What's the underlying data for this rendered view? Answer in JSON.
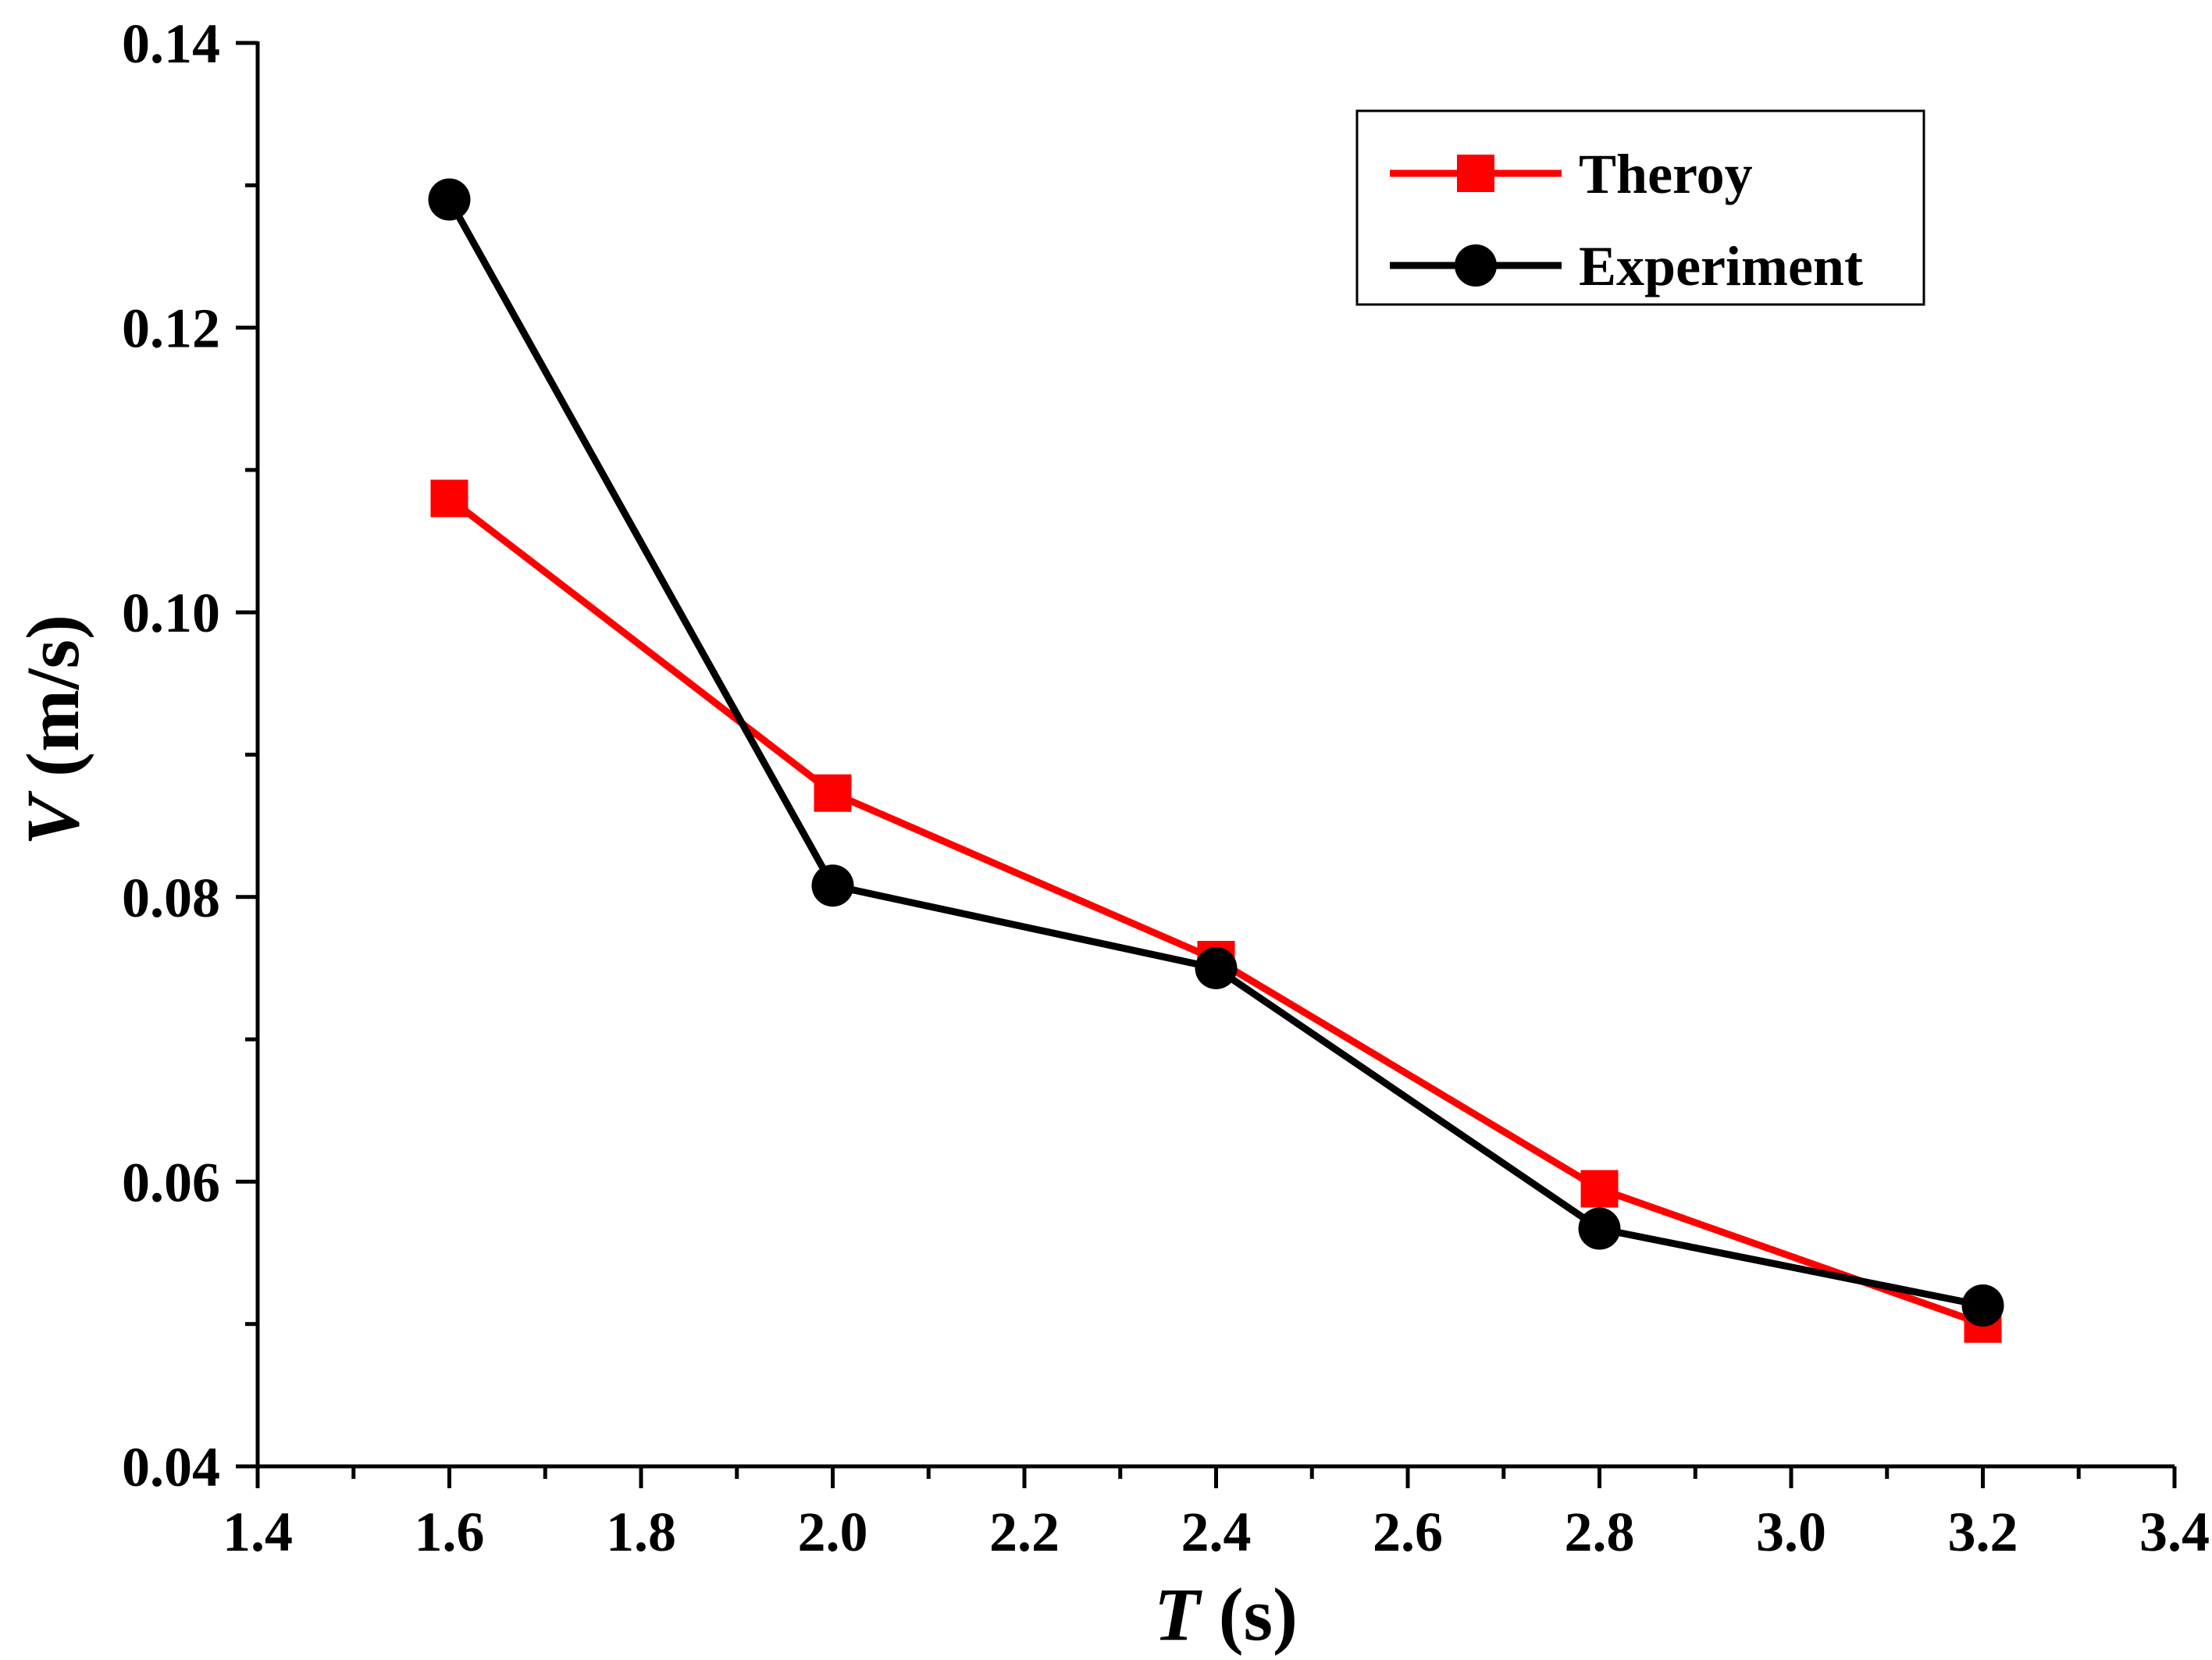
{
  "chart_data": {
    "type": "line",
    "title": "",
    "xlabel": {
      "var": "T",
      "unit": " (s)"
    },
    "ylabel": {
      "var": "V",
      "unit": " (m/s)"
    },
    "xlim": [
      1.4,
      3.4
    ],
    "ylim": [
      0.04,
      0.14
    ],
    "xticks": [
      1.4,
      1.6,
      1.8,
      2.0,
      2.2,
      2.4,
      2.6,
      2.8,
      3.0,
      3.2,
      3.4
    ],
    "xtick_labels": [
      "1.4",
      "1.6",
      "1.8",
      "2.0",
      "2.2",
      "2.4",
      "2.6",
      "2.8",
      "3.0",
      "3.2",
      "3.4"
    ],
    "yticks": [
      0.04,
      0.06,
      0.08,
      0.1,
      0.12,
      0.14
    ],
    "ytick_labels": [
      "0.04",
      "0.06",
      "0.08",
      "0.10",
      "0.12",
      "0.14"
    ],
    "grid": false,
    "legend_position": "top-right",
    "series": [
      {
        "name": "Theroy",
        "color": "#ff0000",
        "marker": "square",
        "x": [
          1.6,
          2.0,
          2.4,
          2.8,
          3.2
        ],
        "y": [
          0.108,
          0.0873,
          0.0756,
          0.0595,
          0.05
        ]
      },
      {
        "name": "Experiment",
        "color": "#000000",
        "marker": "circle",
        "x": [
          1.6,
          2.0,
          2.4,
          2.8,
          3.2
        ],
        "y": [
          0.129,
          0.0808,
          0.075,
          0.0567,
          0.0513
        ]
      }
    ]
  }
}
